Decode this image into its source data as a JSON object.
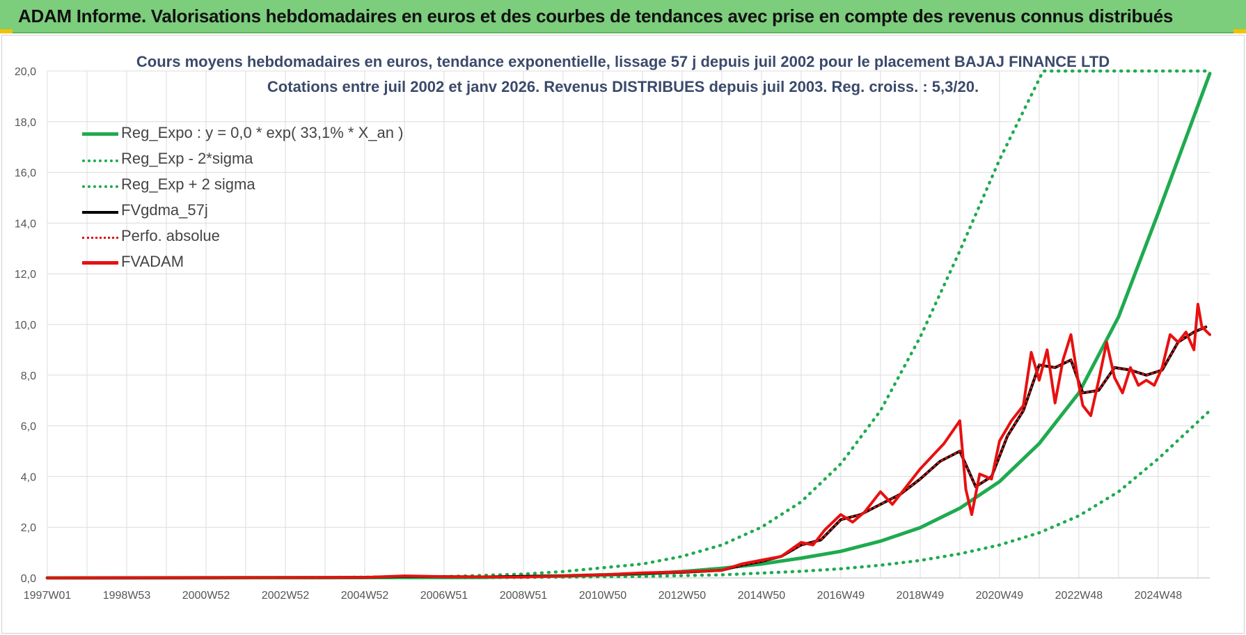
{
  "header": {
    "title": "ADAM Informe. Valorisations hebdomadaires en euros et des courbes de tendances avec prise en compte des revenus connus distribués"
  },
  "colors": {
    "banner": "#7ccd7c",
    "reg_expo": "#1faa4f",
    "sigma": "#1faa4f",
    "fvgdma": "#000000",
    "perfo": "#e01010",
    "fvadam": "#e81010",
    "grid": "#dcdcdc"
  },
  "chart_data": {
    "type": "line",
    "title_line1": "Cours moyens hebdomadaires en euros, tendance exponentielle, lissage 57 j depuis juil 2002 pour le placement BAJAJ FINANCE LTD",
    "title_line2": "Cotations entre juil 2002 et janv 2026. Revenus DISTRIBUES depuis juil 2003. Reg. croiss. : 5,3/20.",
    "xlabel": "",
    "ylabel": "",
    "x_range": [
      1997.0,
      2026.3
    ],
    "ylim": [
      0,
      20
    ],
    "y_ticks": [
      "0,0",
      "2,0",
      "4,0",
      "6,0",
      "8,0",
      "10,0",
      "12,0",
      "14,0",
      "16,0",
      "18,0",
      "20,0"
    ],
    "x_ticks": [
      {
        "label": "1997W01",
        "x": 1997.0
      },
      {
        "label": "1998W53",
        "x": 1999.0
      },
      {
        "label": "2000W52",
        "x": 2001.0
      },
      {
        "label": "2002W52",
        "x": 2003.0
      },
      {
        "label": "2004W52",
        "x": 2005.0
      },
      {
        "label": "2006W51",
        "x": 2007.0
      },
      {
        "label": "2008W51",
        "x": 2009.0
      },
      {
        "label": "2010W50",
        "x": 2011.0
      },
      {
        "label": "2012W50",
        "x": 2013.0
      },
      {
        "label": "2014W50",
        "x": 2015.0
      },
      {
        "label": "2016W49",
        "x": 2017.0
      },
      {
        "label": "2018W49",
        "x": 2019.0
      },
      {
        "label": "2020W49",
        "x": 2021.0
      },
      {
        "label": "2022W48",
        "x": 2023.0
      },
      {
        "label": "2024W48",
        "x": 2025.0
      }
    ],
    "grid": true,
    "legend_position": "top-left",
    "series": [
      {
        "name": "Reg_Expo : y = 0,0 * exp( 33,1% *  X_an )",
        "style": "solid",
        "color": "#1faa4f",
        "x": [
          1997,
          2004,
          2008,
          2010,
          2012,
          2013,
          2014,
          2015,
          2016,
          2017,
          2018,
          2019,
          2020,
          2021,
          2022,
          2023,
          2024,
          2025,
          2026.3
        ],
        "y": [
          0,
          0.01,
          0.02,
          0.08,
          0.16,
          0.25,
          0.38,
          0.55,
          0.78,
          1.05,
          1.45,
          1.98,
          2.75,
          3.8,
          5.3,
          7.3,
          10.3,
          14.4,
          19.9
        ]
      },
      {
        "name": "Reg_Exp - 2*sigma",
        "style": "dotted",
        "color": "#1faa4f",
        "x": [
          1997,
          2004,
          2008,
          2010,
          2012,
          2014,
          2016,
          2017,
          2018,
          2019,
          2020,
          2021,
          2022,
          2023,
          2024,
          2025,
          2026.3
        ],
        "y": [
          0,
          0.01,
          0.01,
          0.03,
          0.06,
          0.12,
          0.26,
          0.36,
          0.5,
          0.69,
          0.95,
          1.3,
          1.78,
          2.45,
          3.4,
          4.7,
          6.6
        ]
      },
      {
        "name": "Reg_Exp + 2 sigma",
        "style": "dotted",
        "color": "#1faa4f",
        "x": [
          1997,
          2004,
          2007,
          2009,
          2010,
          2012,
          2013,
          2014,
          2015,
          2016,
          2017,
          2018,
          2019,
          2020,
          2021,
          2022.1,
          2026.3
        ],
        "y": [
          0,
          0.02,
          0.05,
          0.15,
          0.25,
          0.55,
          0.85,
          1.3,
          2.0,
          3.0,
          4.5,
          6.6,
          9.5,
          12.9,
          16.5,
          20.0,
          20.0
        ]
      },
      {
        "name": "FVgdma_57j",
        "style": "solid",
        "color": "#000000",
        "x": [
          1997,
          2005,
          2006,
          2008,
          2010,
          2011,
          2012,
          2013,
          2014,
          2014.5,
          2015,
          2015.5,
          2016,
          2016.5,
          2017,
          2017.5,
          2018,
          2018.5,
          2019,
          2019.5,
          2020,
          2020.4,
          2020.8,
          2021.2,
          2021.6,
          2022,
          2022.4,
          2022.8,
          2023.1,
          2023.5,
          2023.9,
          2024.3,
          2024.7,
          2025.1,
          2025.5,
          2025.9,
          2026.2
        ],
        "y": [
          0,
          0.02,
          0.06,
          0.04,
          0.08,
          0.12,
          0.18,
          0.22,
          0.3,
          0.5,
          0.65,
          0.85,
          1.3,
          1.5,
          2.3,
          2.5,
          2.9,
          3.3,
          3.9,
          4.6,
          5.0,
          3.6,
          4.0,
          5.6,
          6.6,
          8.4,
          8.3,
          8.6,
          7.3,
          7.4,
          8.3,
          8.2,
          8.0,
          8.2,
          9.3,
          9.7,
          9.9
        ]
      },
      {
        "name": "Perfo. absolue",
        "style": "dotted",
        "color": "#e01010",
        "x": [
          1997,
          2005,
          2006,
          2008,
          2010,
          2011,
          2012,
          2013,
          2014,
          2014.5,
          2015,
          2015.5,
          2016,
          2016.5,
          2017,
          2017.5,
          2018,
          2018.5,
          2019,
          2019.5,
          2020,
          2020.4,
          2020.8,
          2021.2,
          2021.6,
          2022,
          2022.4,
          2022.8,
          2023.1,
          2023.5,
          2023.9,
          2024.3,
          2024.7,
          2025.1,
          2025.5,
          2025.9,
          2026.2
        ],
        "y": [
          0,
          0.02,
          0.06,
          0.04,
          0.08,
          0.12,
          0.18,
          0.22,
          0.3,
          0.5,
          0.65,
          0.85,
          1.3,
          1.5,
          2.3,
          2.5,
          2.9,
          3.3,
          3.9,
          4.6,
          5.0,
          3.6,
          4.0,
          5.6,
          6.6,
          8.4,
          8.3,
          8.6,
          7.3,
          7.4,
          8.3,
          8.2,
          8.0,
          8.2,
          9.3,
          9.7,
          9.9
        ]
      },
      {
        "name": "FVADAM",
        "style": "solid",
        "color": "#e81010",
        "x": [
          1997,
          2005,
          2006,
          2007,
          2008,
          2009,
          2010,
          2011,
          2012,
          2013,
          2014,
          2014.5,
          2015,
          2015.5,
          2016,
          2016.3,
          2016.6,
          2017,
          2017.3,
          2017.6,
          2018,
          2018.3,
          2018.6,
          2019,
          2019.3,
          2019.6,
          2020,
          2020.15,
          2020.3,
          2020.5,
          2020.8,
          2021,
          2021.3,
          2021.6,
          2021.8,
          2022,
          2022.2,
          2022.4,
          2022.6,
          2022.8,
          2023,
          2023.1,
          2023.3,
          2023.5,
          2023.7,
          2023.9,
          2024.1,
          2024.3,
          2024.5,
          2024.7,
          2024.9,
          2025.1,
          2025.3,
          2025.5,
          2025.7,
          2025.9,
          2026.0,
          2026.1,
          2026.3
        ],
        "y": [
          0,
          0.02,
          0.08,
          0.05,
          0.04,
          0.03,
          0.08,
          0.12,
          0.2,
          0.24,
          0.3,
          0.55,
          0.7,
          0.85,
          1.4,
          1.3,
          1.9,
          2.5,
          2.2,
          2.6,
          3.4,
          2.9,
          3.5,
          4.3,
          4.8,
          5.3,
          6.2,
          3.5,
          2.5,
          4.1,
          3.9,
          5.4,
          6.2,
          6.8,
          8.9,
          7.8,
          9.0,
          6.9,
          8.6,
          9.6,
          7.6,
          6.8,
          6.4,
          7.8,
          9.3,
          7.9,
          7.3,
          8.3,
          7.6,
          7.8,
          7.6,
          8.3,
          9.6,
          9.3,
          9.7,
          9.0,
          10.8,
          9.9,
          9.6
        ]
      }
    ]
  }
}
